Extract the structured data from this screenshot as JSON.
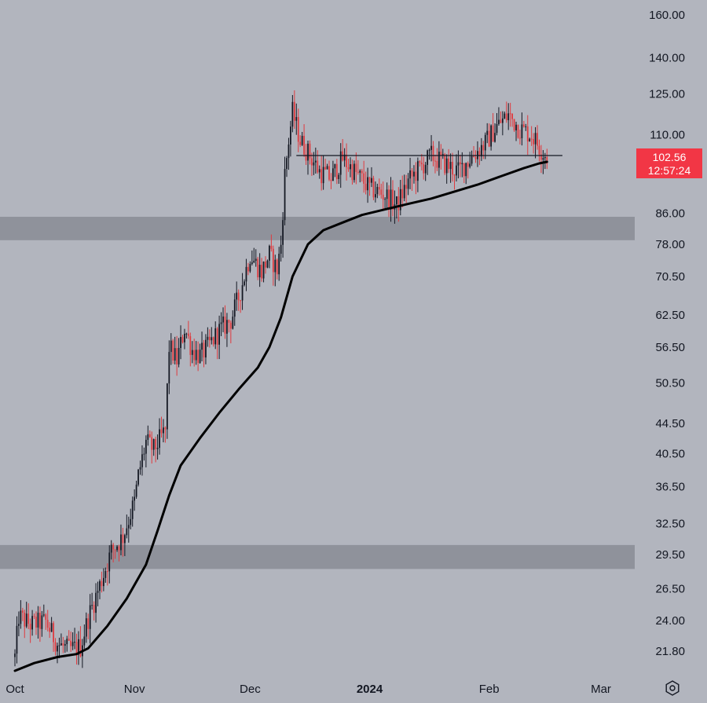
{
  "chart_data": {
    "type": "candlestick",
    "title": "",
    "xlabel": "",
    "ylabel": "",
    "y_scale": "log",
    "ylim": [
      20.4,
      167
    ],
    "x_range": [
      "2023-10-01",
      "2024-03-05"
    ],
    "y_ticks": [
      "160.00",
      "140.00",
      "125.00",
      "110.00",
      "86.00",
      "78.00",
      "70.50",
      "62.50",
      "56.50",
      "50.50",
      "44.50",
      "40.50",
      "36.50",
      "32.50",
      "29.50",
      "26.50",
      "24.00",
      "21.80"
    ],
    "x_ticks": [
      {
        "label": "Oct",
        "date": "2023-10-01"
      },
      {
        "label": "Nov",
        "date": "2023-11-01"
      },
      {
        "label": "Dec",
        "date": "2023-12-01"
      },
      {
        "label": "2024",
        "date": "2024-01-01",
        "bold": true
      },
      {
        "label": "Feb",
        "date": "2024-02-01"
      },
      {
        "label": "Mar",
        "date": "2024-03-01"
      }
    ],
    "grid": false,
    "bar_interval_hours": 12,
    "zones": [
      {
        "y_low": 79,
        "y_high": 85
      },
      {
        "y_low": 28.2,
        "y_high": 30.4
      }
    ],
    "horizontal_line": 103,
    "current_price": {
      "value": "102.56",
      "countdown": "12:57:24"
    },
    "ohlc_anchor_closes": [
      [
        "2023-10-01",
        21.4
      ],
      [
        "2023-10-02",
        24.3
      ],
      [
        "2023-10-05",
        23.7
      ],
      [
        "2023-10-09",
        23.9
      ],
      [
        "2023-10-12",
        22.3
      ],
      [
        "2023-10-15",
        21.9
      ],
      [
        "2023-10-18",
        22.1
      ],
      [
        "2023-10-20",
        24.2
      ],
      [
        "2023-10-23",
        26.8
      ],
      [
        "2023-10-26",
        29.8
      ],
      [
        "2023-10-29",
        31.2
      ],
      [
        "2023-11-01",
        34.8
      ],
      [
        "2023-11-02",
        37.8
      ],
      [
        "2023-11-04",
        42.0
      ],
      [
        "2023-11-06",
        41.0
      ],
      [
        "2023-11-09",
        43.5
      ],
      [
        "2023-11-10",
        56.5
      ],
      [
        "2023-11-12",
        54.2
      ],
      [
        "2023-11-14",
        60.0
      ],
      [
        "2023-11-16",
        56.0
      ],
      [
        "2023-11-18",
        55.0
      ],
      [
        "2023-11-20",
        56.5
      ],
      [
        "2023-11-23",
        59.5
      ],
      [
        "2023-11-26",
        61.5
      ],
      [
        "2023-11-28",
        66.0
      ],
      [
        "2023-12-01",
        75.5
      ],
      [
        "2023-12-04",
        71.5
      ],
      [
        "2023-12-06",
        75.5
      ],
      [
        "2023-12-08",
        72.0
      ],
      [
        "2023-12-09",
        78.0
      ],
      [
        "2023-12-10",
        97.0
      ],
      [
        "2023-12-11",
        108.0
      ],
      [
        "2023-12-12",
        118.0
      ],
      [
        "2023-12-14",
        108.0
      ],
      [
        "2023-12-16",
        104.0
      ],
      [
        "2023-12-19",
        98.0
      ],
      [
        "2023-12-22",
        96.0
      ],
      [
        "2023-12-25",
        102.0
      ],
      [
        "2023-12-28",
        98.0
      ],
      [
        "2024-01-01",
        93.0
      ],
      [
        "2024-01-05",
        91.0
      ],
      [
        "2024-01-08",
        88.0
      ],
      [
        "2024-01-11",
        95.0
      ],
      [
        "2024-01-14",
        99.0
      ],
      [
        "2024-01-17",
        103.0
      ],
      [
        "2024-01-21",
        100.0
      ],
      [
        "2024-01-24",
        98.0
      ],
      [
        "2024-01-27",
        102.0
      ],
      [
        "2024-01-31",
        107.0
      ],
      [
        "2024-02-03",
        113.0
      ],
      [
        "2024-02-06",
        117.0
      ],
      [
        "2024-02-09",
        112.0
      ],
      [
        "2024-02-12",
        110.0
      ],
      [
        "2024-02-15",
        104.0
      ],
      [
        "2024-02-16",
        102.56
      ]
    ],
    "moving_average": [
      [
        "2023-10-01",
        20.5
      ],
      [
        "2023-10-06",
        21.0
      ],
      [
        "2023-10-12",
        21.4
      ],
      [
        "2023-10-17",
        21.6
      ],
      [
        "2023-10-20",
        22.0
      ],
      [
        "2023-10-25",
        23.6
      ],
      [
        "2023-10-30",
        25.7
      ],
      [
        "2023-11-04",
        28.6
      ],
      [
        "2023-11-07",
        31.8
      ],
      [
        "2023-11-10",
        35.5
      ],
      [
        "2023-11-13",
        39.0
      ],
      [
        "2023-11-18",
        42.5
      ],
      [
        "2023-11-23",
        46.0
      ],
      [
        "2023-11-28",
        49.5
      ],
      [
        "2023-12-03",
        53.0
      ],
      [
        "2023-12-06",
        56.5
      ],
      [
        "2023-12-09",
        62.0
      ],
      [
        "2023-12-12",
        70.5
      ],
      [
        "2023-12-16",
        78.0
      ],
      [
        "2023-12-20",
        81.5
      ],
      [
        "2023-12-25",
        83.5
      ],
      [
        "2023-12-30",
        85.5
      ],
      [
        "2024-01-05",
        87.0
      ],
      [
        "2024-01-11",
        88.5
      ],
      [
        "2024-01-17",
        90.0
      ],
      [
        "2024-01-23",
        92.0
      ],
      [
        "2024-01-29",
        94.0
      ],
      [
        "2024-02-04",
        96.5
      ],
      [
        "2024-02-10",
        99.0
      ],
      [
        "2024-02-14",
        100.5
      ],
      [
        "2024-02-16",
        101.0
      ]
    ]
  }
}
